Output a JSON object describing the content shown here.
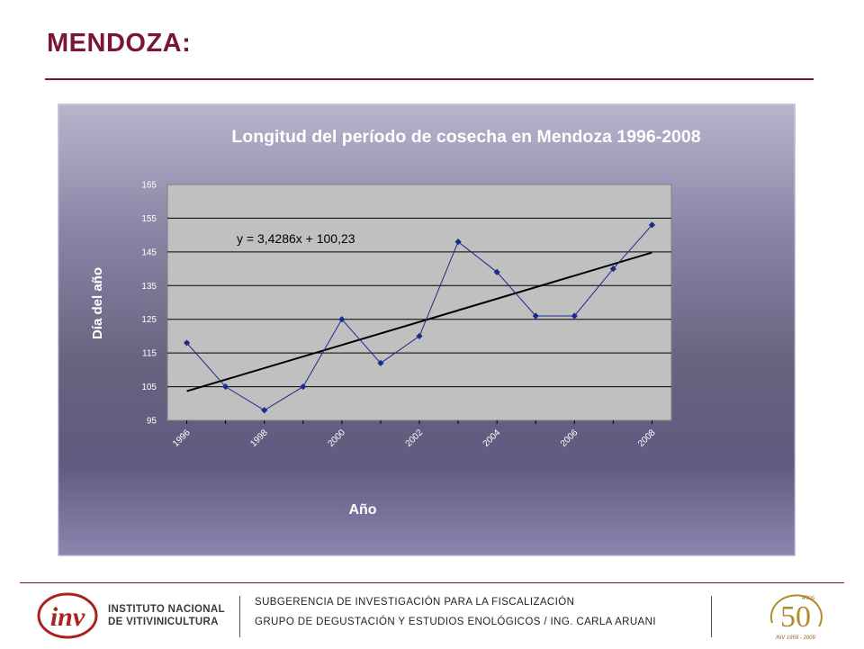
{
  "page": {
    "title": "MENDOZA:"
  },
  "footer": {
    "logo_line1": "INSTITUTO NACIONAL",
    "logo_line2": "DE VITIVINICULTURA",
    "logo_mark": "inv",
    "line1": "SUBGERENCIA DE INVESTIGACIÓN PARA LA FISCALIZACIÓN",
    "line2": "GRUPO DE DEGUSTACIÓN Y ESTUDIOS ENOLÓGICOS / ING. CARLA ARUANI",
    "badge_number": "50",
    "badge_small": "AÑOS",
    "badge_years": "INV 1959 - 2009"
  },
  "colors": {
    "title": "#7a1533",
    "series": "#1c2a8a",
    "trend": "#000000",
    "plot_bg": "#c0c0c0"
  },
  "chart_data": {
    "type": "scatter",
    "title": "Longitud del período de cosecha en Mendoza 1996-2008",
    "xlabel": "Año",
    "ylabel": "Día del año",
    "ylim": [
      95,
      165
    ],
    "yticks": [
      95,
      105,
      115,
      125,
      135,
      145,
      155,
      165
    ],
    "xticks": [
      1996,
      1998,
      2000,
      2002,
      2004,
      2006,
      2008
    ],
    "grid": "horizontal",
    "series": [
      {
        "x": [
          1996,
          1997,
          1998,
          1999,
          2000,
          2001,
          2002,
          2003,
          2004,
          2005,
          2006,
          2007,
          2008
        ],
        "y": [
          118,
          105,
          98,
          105,
          125,
          112,
          120,
          148,
          139,
          126,
          126,
          140,
          153
        ]
      }
    ],
    "trendline": {
      "equation": "y = 3,4286x + 100,23",
      "slope": 3.4286,
      "intercept": 100.23
    }
  }
}
